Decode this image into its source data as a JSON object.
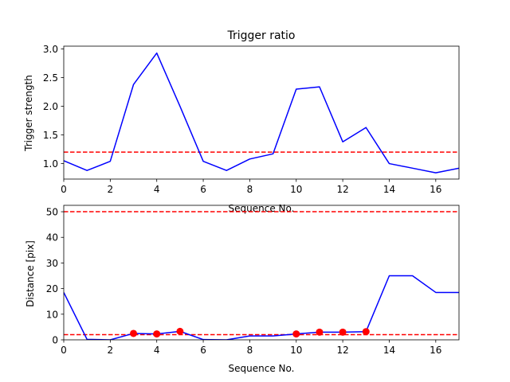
{
  "chart_data": [
    {
      "type": "line",
      "title": "Trigger ratio",
      "xlabel": "Sequence No.",
      "ylabel": "Trigger strength",
      "xlim": [
        0,
        17
      ],
      "ylim": [
        0.73,
        3.05
      ],
      "xticks": [
        0,
        2,
        4,
        6,
        8,
        10,
        12,
        14,
        16
      ],
      "yticks": [
        1.0,
        1.5,
        2.0,
        2.5,
        3.0
      ],
      "ytick_format": 1,
      "grid": false,
      "series": [
        {
          "color": "#0000ff",
          "style": "solid",
          "x": [
            0,
            1,
            2,
            3,
            4,
            5,
            6,
            7,
            8,
            9,
            10,
            11,
            12,
            13,
            14,
            15,
            16,
            17
          ],
          "values": [
            1.05,
            0.88,
            1.04,
            2.38,
            2.93,
            2.0,
            1.04,
            0.88,
            1.08,
            1.17,
            2.3,
            2.34,
            1.38,
            1.63,
            1.0,
            0.92,
            0.84,
            0.92
          ]
        }
      ],
      "hlines": [
        {
          "y": 1.2,
          "color": "#ff0000",
          "style": "dashed"
        }
      ],
      "markers": []
    },
    {
      "type": "line",
      "title": "",
      "xlabel": "Sequence No.",
      "ylabel": "Distance [pix]",
      "xlim": [
        0,
        17
      ],
      "ylim": [
        0,
        52.5
      ],
      "xticks": [
        0,
        2,
        4,
        6,
        8,
        10,
        12,
        14,
        16
      ],
      "yticks": [
        0,
        10,
        20,
        30,
        40,
        50
      ],
      "ytick_format": 0,
      "grid": false,
      "series": [
        {
          "color": "#0000ff",
          "style": "solid",
          "x": [
            0,
            1,
            2,
            3,
            4,
            5,
            6,
            7,
            8,
            9,
            10,
            11,
            12,
            13,
            14,
            15,
            16,
            17
          ],
          "values": [
            18.5,
            0.2,
            0.0,
            2.5,
            2.3,
            3.3,
            0.1,
            0.0,
            1.5,
            1.5,
            2.3,
            3.0,
            3.0,
            3.2,
            25.0,
            25.0,
            18.5,
            18.5
          ]
        }
      ],
      "hlines": [
        {
          "y": 50,
          "color": "#ff0000",
          "style": "dashed"
        },
        {
          "y": 2,
          "color": "#ff0000",
          "style": "dashed"
        }
      ],
      "markers": [
        {
          "color": "#ff0000",
          "x": [
            3,
            4,
            5,
            10,
            11,
            12,
            13
          ],
          "values": [
            2.5,
            2.3,
            3.3,
            2.3,
            3.0,
            3.0,
            3.2
          ]
        }
      ]
    }
  ]
}
